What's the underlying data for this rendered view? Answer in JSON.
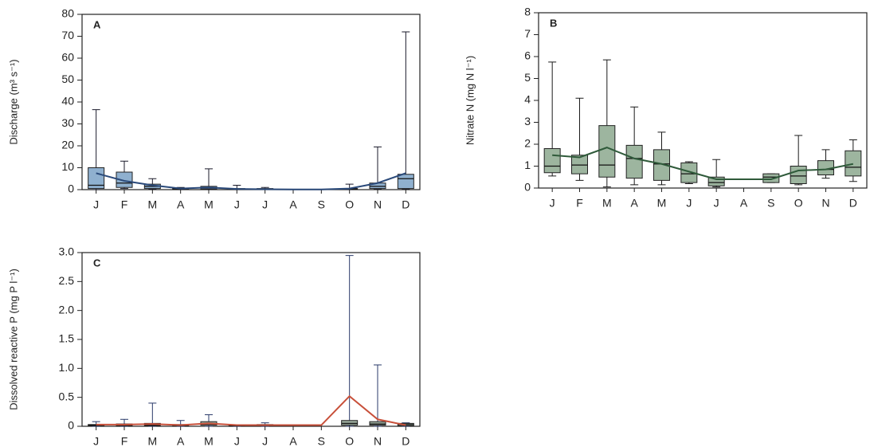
{
  "chart_data": [
    {
      "type": "box",
      "panel_label": "A",
      "ylabel": "Discharge (m³ s⁻¹)",
      "categories": [
        "J",
        "F",
        "M",
        "A",
        "M",
        "J",
        "J",
        "A",
        "S",
        "O",
        "N",
        "D"
      ],
      "min": [
        0,
        0.5,
        0.2,
        0.1,
        0.1,
        0,
        0,
        null,
        null,
        0,
        0.3,
        0.3
      ],
      "q1": [
        0.5,
        1,
        0.5,
        0.2,
        0.3,
        0.1,
        0.1,
        null,
        null,
        0.2,
        0.5,
        0.5
      ],
      "median": [
        2,
        3,
        1.5,
        0.4,
        0.8,
        0.3,
        0.3,
        null,
        null,
        0.4,
        1.5,
        5
      ],
      "q3": [
        10,
        8,
        2.5,
        0.7,
        1.5,
        0.5,
        0.5,
        null,
        null,
        0.5,
        3,
        7
      ],
      "max": [
        36.5,
        13,
        5,
        1,
        9.5,
        2,
        1,
        null,
        null,
        2.5,
        19.5,
        72
      ],
      "line_values": [
        7.5,
        4,
        2,
        0.5,
        1,
        0.3,
        0.2,
        0.1,
        0.1,
        0.5,
        3,
        7.5
      ],
      "box_color": "#8fb0cf",
      "line_color": "#2b4a7a",
      "whisker_color": "#1a1a2a",
      "ylim": [
        0,
        80
      ],
      "yticks": [
        0,
        10,
        20,
        30,
        40,
        50,
        60,
        70,
        80
      ]
    },
    {
      "type": "box",
      "panel_label": "B",
      "ylabel": "Nitrate N  (mg N l⁻¹)",
      "categories": [
        "J",
        "F",
        "M",
        "A",
        "M",
        "J",
        "J",
        "A",
        "S",
        "O",
        "N",
        "D"
      ],
      "min": [
        0.55,
        0.35,
        0.05,
        0.15,
        0.15,
        0.2,
        0.05,
        null,
        0.25,
        0.15,
        0.45,
        0.3
      ],
      "q1": [
        0.7,
        0.65,
        0.5,
        0.45,
        0.35,
        0.25,
        0.1,
        null,
        0.25,
        0.2,
        0.6,
        0.55
      ],
      "median": [
        1.0,
        1.05,
        1.05,
        1.35,
        1.1,
        0.65,
        0.25,
        null,
        0.5,
        0.55,
        0.85,
        0.95
      ],
      "q3": [
        1.8,
        1.5,
        2.85,
        1.95,
        1.75,
        1.15,
        0.5,
        null,
        0.65,
        1.0,
        1.25,
        1.7
      ],
      "max": [
        5.75,
        4.1,
        5.85,
        3.7,
        2.55,
        1.2,
        1.3,
        null,
        0.65,
        2.4,
        1.75,
        2.2
      ],
      "line_values": [
        1.5,
        1.4,
        1.85,
        1.35,
        1.1,
        0.75,
        0.4,
        0.4,
        0.4,
        0.8,
        0.85,
        1.1
      ],
      "box_color": "#9db59f",
      "line_color": "#2f5a3a",
      "whisker_color": "#1a1a1a",
      "ylim": [
        0,
        8
      ],
      "yticks": [
        0,
        1,
        2,
        3,
        4,
        5,
        6,
        7,
        8
      ]
    },
    {
      "type": "box",
      "panel_label": "C",
      "ylabel": "Dissolved reactive P (mg P l⁻¹)",
      "categories": [
        "J",
        "F",
        "M",
        "A",
        "M",
        "J",
        "J",
        "A",
        "S",
        "O",
        "N",
        "D"
      ],
      "min": [
        0,
        0,
        0,
        0,
        0,
        0,
        0,
        null,
        null,
        0,
        0,
        0
      ],
      "q1": [
        0.01,
        0.01,
        0.01,
        0.01,
        0.02,
        0.01,
        0.01,
        null,
        null,
        0.02,
        0.02,
        0.01
      ],
      "median": [
        0.02,
        0.02,
        0.02,
        0.02,
        0.04,
        0.01,
        0.02,
        null,
        null,
        0.05,
        0.04,
        0.03
      ],
      "q3": [
        0.03,
        0.04,
        0.05,
        0.03,
        0.08,
        0.02,
        0.03,
        null,
        null,
        0.1,
        0.08,
        0.05
      ],
      "max": [
        0.08,
        0.12,
        0.4,
        0.1,
        0.2,
        0.02,
        0.06,
        null,
        null,
        2.95,
        1.06,
        0.06
      ],
      "line_values": [
        0.03,
        0.03,
        0.04,
        0.02,
        0.05,
        0.02,
        0.02,
        0.02,
        0.02,
        0.52,
        0.12,
        0.02
      ],
      "box_color": "#9aab9c",
      "line_color": "#c8503a",
      "whisker_color": "#2a3a6a",
      "ylim": [
        0,
        3
      ],
      "yticks": [
        0,
        0.5,
        {
          "value": 1,
          "label": "1.0"
        },
        1.5,
        {
          "value": 2,
          "label": "2.0"
        },
        2.5,
        {
          "value": 3,
          "label": "3.0"
        }
      ]
    }
  ]
}
